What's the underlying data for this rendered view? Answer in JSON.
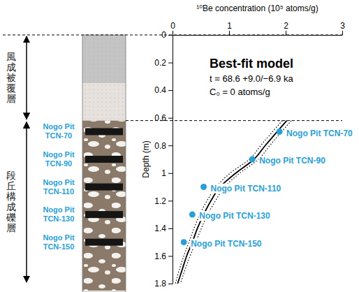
{
  "chart_data": {
    "type": "scatter",
    "x_label": "¹⁰Be concentration (10⁵ atoms/g)",
    "y_label": "Depth (m)",
    "xlim": [
      0,
      3
    ],
    "xticks": [
      0,
      1,
      2,
      3
    ],
    "ylim": [
      0,
      1.8
    ],
    "yticks": [
      0,
      0.2,
      0.4,
      0.6,
      0.8,
      1,
      1.2,
      1.4,
      1.6,
      1.8
    ],
    "hlines": [
      0,
      0.62
    ],
    "annotation": {
      "title": "Best-fit model",
      "lines": [
        "t = 68.6 +9.0/−6.9 ka",
        "C₀ = 0 atoms/g"
      ]
    },
    "column": {
      "layers": [
        {
          "top": 0,
          "bottom": 0.35,
          "color": "#c4c4c4"
        },
        {
          "top": 0.35,
          "bottom": 0.62,
          "color": "#e6e1dc"
        },
        {
          "top": 0.62,
          "bottom": 1.8,
          "color": "#8b7a69"
        }
      ],
      "units": [
        {
          "label": "風成被覆層",
          "top": 0,
          "bottom": 0.62
        },
        {
          "label": "段丘構成礫層",
          "top": 0.62,
          "bottom": 1.8
        }
      ]
    },
    "series": [
      {
        "type": "scatter",
        "color": "#2a9fd6",
        "marker": "circle",
        "x": [
          1.89,
          1.41,
          0.55,
          0.35,
          0.2
        ],
        "y": [
          0.7,
          0.9,
          1.1,
          1.3,
          1.5
        ],
        "labels": [
          "Nogo Pit TCN-70",
          "Nogo Pit TCN-90",
          "Nogo Pit TCN-110",
          "Nogo Pit TCN-130",
          "Nogo Pit TCN-150"
        ]
      },
      {
        "type": "line",
        "color": "#000000",
        "line_style": "solid",
        "x": [
          2.02,
          1.85,
          1.64,
          1.44,
          1.12,
          0.84,
          0.68,
          0.55,
          0.44,
          0.35,
          0.25,
          0.17,
          0.09
        ],
        "y": [
          0.62,
          0.7,
          0.8,
          0.9,
          1,
          1.1,
          1.2,
          1.3,
          1.4,
          1.5,
          1.6,
          1.7,
          1.8
        ]
      },
      {
        "type": "line",
        "color": "#000000",
        "line_style": "dotted",
        "x": [
          2.1,
          1.93,
          1.72,
          1.52,
          1.19,
          0.92,
          0.76,
          0.62,
          0.51,
          0.41,
          0.31,
          0.22,
          0.14
        ],
        "y": [
          0.62,
          0.7,
          0.8,
          0.9,
          1,
          1.1,
          1.2,
          1.3,
          1.4,
          1.5,
          1.6,
          1.7,
          1.8
        ]
      },
      {
        "type": "line",
        "color": "#000000",
        "line_style": "dotted",
        "x": [
          1.94,
          1.77,
          1.56,
          1.36,
          1.02,
          0.77,
          0.61,
          0.48,
          0.38,
          0.29,
          0.2,
          0.12,
          0.05
        ],
        "y": [
          0.62,
          0.7,
          0.8,
          0.9,
          1,
          1.1,
          1.2,
          1.3,
          1.4,
          1.5,
          1.6,
          1.7,
          1.8
        ]
      }
    ]
  }
}
